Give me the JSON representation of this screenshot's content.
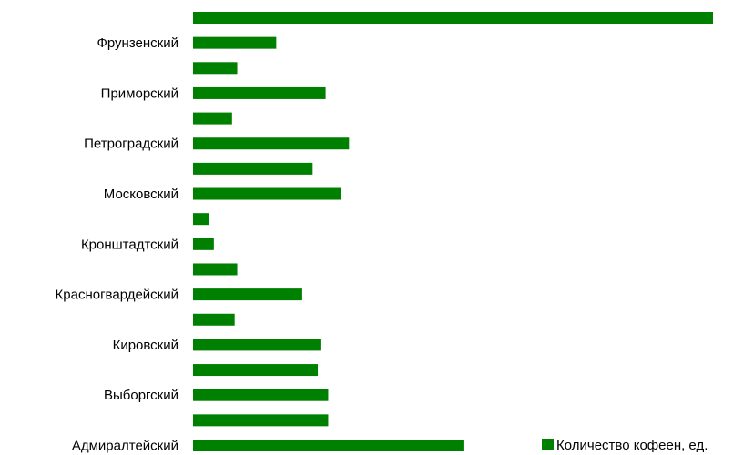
{
  "chart_data": {
    "type": "bar",
    "orientation": "horizontal",
    "title": "",
    "xlabel": "",
    "ylabel": "",
    "xlim": [
      0,
      100
    ],
    "grid": false,
    "legend": "bottom-right",
    "categories": [
      "Адмиралтейский",
      "",
      "Выборгский",
      "",
      "Кировский",
      "",
      "Красногвардейский",
      "",
      "Кронштадтский",
      "",
      "Московский",
      "",
      "Петроградский",
      "",
      "Приморский",
      "",
      "Фрунзенский",
      ""
    ],
    "series": [
      {
        "name": "Количество кофеен, ед.",
        "color": "#008000",
        "values": [
          52,
          26,
          26,
          24,
          24.5,
          8,
          21,
          8.5,
          4,
          3,
          28.5,
          23,
          30,
          7.5,
          25.5,
          8.5,
          16,
          100
        ]
      }
    ]
  }
}
